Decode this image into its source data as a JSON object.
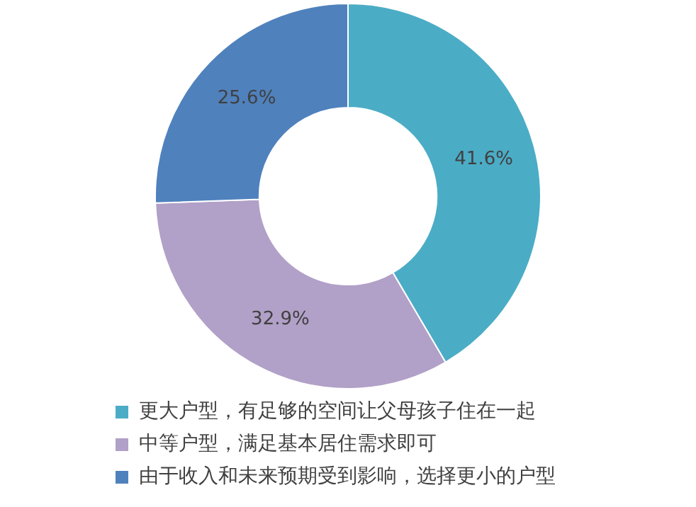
{
  "chart_data": {
    "type": "donut",
    "categories": [
      "更大户型，有足够的空间让父母孩子住在一起",
      "中等户型，满足基本居住需求即可",
      "由于收入和未来预期受到影响，选择更小的户型"
    ],
    "values": [
      41.6,
      32.9,
      25.6
    ],
    "value_labels": [
      "41.6%",
      "32.9%",
      "25.6%"
    ],
    "colors": [
      "#4bacc6",
      "#b1a0c7",
      "#4f81bd"
    ],
    "legend": "bottom"
  }
}
